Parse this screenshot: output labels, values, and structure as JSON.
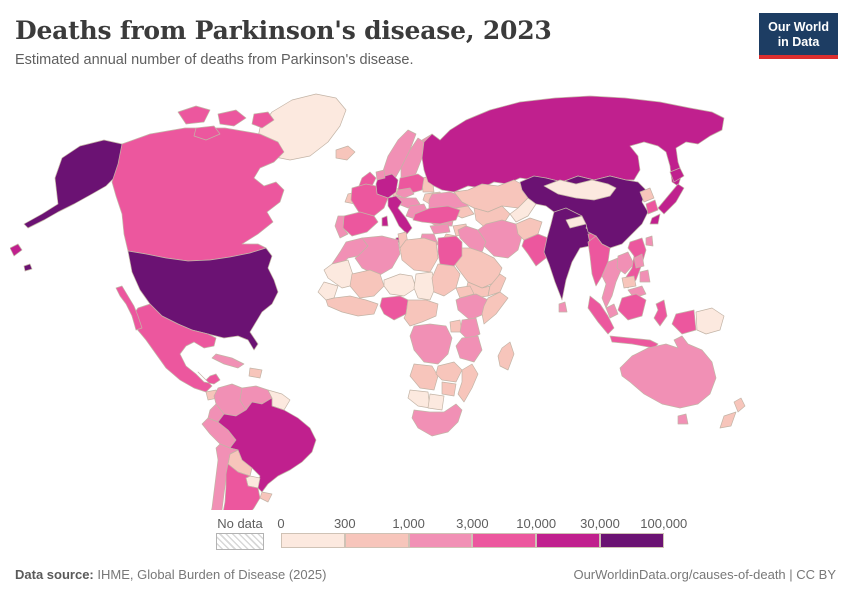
{
  "header": {
    "title": "Deaths from Parkinson's disease, 2023",
    "subtitle": "Estimated annual number of deaths from Parkinson's disease."
  },
  "logo": {
    "line1": "Our World",
    "line2": "in Data",
    "bg_color": "#1d3d63",
    "accent_color": "#dc2e2e"
  },
  "legend": {
    "no_data_label": "No data",
    "ticks": [
      "0",
      "300",
      "1,000",
      "3,000",
      "10,000",
      "30,000",
      "100,000"
    ]
  },
  "footer": {
    "source_label": "Data source:",
    "source_text": " IHME, Global Burden of Disease (2025)",
    "right_text": "OurWorldinData.org/causes-of-death | CC BY"
  },
  "chart_data": {
    "type": "choropleth_map",
    "title": "Deaths from Parkinson's disease, 2023",
    "unit": "estimated annual deaths",
    "bin_edges": [
      0,
      300,
      1000,
      3000,
      10000,
      30000,
      100000
    ],
    "bin_labels": [
      "0–300",
      "300–1,000",
      "1,000–3,000",
      "3,000–10,000",
      "10,000–30,000",
      "30,000–100,000"
    ],
    "bin_colors": [
      "#fce9df",
      "#f7c5bb",
      "#f190b5",
      "#ec579e",
      "#c0208e",
      "#6b1273"
    ],
    "border_color": "#c3b4a6",
    "legend_position": "bottom",
    "country_bins": {
      "United States": 5,
      "Canada": 3,
      "Greenland": 0,
      "Mexico": 3,
      "Guatemala": 1,
      "Nicaragua": 1,
      "Panama": 1,
      "Cuba": 2,
      "Dominican Republic": 1,
      "Colombia": 2,
      "Venezuela": 2,
      "Guyana": 0,
      "Ecuador": 2,
      "Peru": 2,
      "Brazil": 4,
      "Bolivia": 1,
      "Paraguay": 0,
      "Uruguay": 1,
      "Chile": 2,
      "Argentina": 3,
      "Iceland": 1,
      "United Kingdom": 3,
      "Ireland": 1,
      "Norway": 2,
      "Sweden": 2,
      "Finland": 2,
      "Denmark": 1,
      "Baltic states": 1,
      "Belarus": 1,
      "Poland": 3,
      "Germany": 4,
      "Netherlands": 2,
      "France": 3,
      "Spain": 3,
      "Portugal": 2,
      "Italy": 4,
      "Czechia": 2,
      "Austria": 2,
      "Serbia": 2,
      "Ukraine": 2,
      "Romania": 2,
      "Bulgaria": 2,
      "Greece": 2,
      "Turkey": 3,
      "Russia": 4,
      "Kazakhstan": 1,
      "Uzbekistan": 1,
      "Kyrgyzstan": 0,
      "Caucasus": 1,
      "Syria": 1,
      "Jordan": 1,
      "Iraq": 2,
      "Iran": 2,
      "Saudi Arabia": 1,
      "Yemen": 1,
      "Oman": 1,
      "Afghanistan": 1,
      "Pakistan": 3,
      "India": 5,
      "Nepal": 0,
      "Bangladesh": 3,
      "Sri Lanka": 2,
      "China": 5,
      "Mongolia": 0,
      "North Korea": 1,
      "South Korea": 3,
      "Japan": 4,
      "Taiwan": 2,
      "Myanmar": 3,
      "Thailand": 2,
      "Laos": 2,
      "Vietnam": 3,
      "Cambodia": 1,
      "Malaysia": 2,
      "Indonesia": 3,
      "Papua New Guinea": 0,
      "Philippines": 2,
      "Australia": 2,
      "New Zealand": 1,
      "Morocco": 2,
      "Mauritania": 0,
      "Algeria": 2,
      "Tunisia": 1,
      "Libya": 1,
      "Egypt": 3,
      "Mali": 1,
      "Niger": 0,
      "Chad": 0,
      "Sudan": 1,
      "Senegal": 0,
      "Ghana": 1,
      "Nigeria": 3,
      "Cameroon": 1,
      "Eritrea": 1,
      "Ethiopia": 2,
      "Somalia": 1,
      "Uganda": 1,
      "Kenya": 2,
      "Democratic Republic of Congo": 2,
      "Tanzania": 2,
      "Angola": 1,
      "Zambia": 1,
      "Mozambique": 1,
      "Zimbabwe": 1,
      "Namibia": 0,
      "Botswana": 0,
      "South Africa": 2,
      "Madagascar": 1
    }
  }
}
